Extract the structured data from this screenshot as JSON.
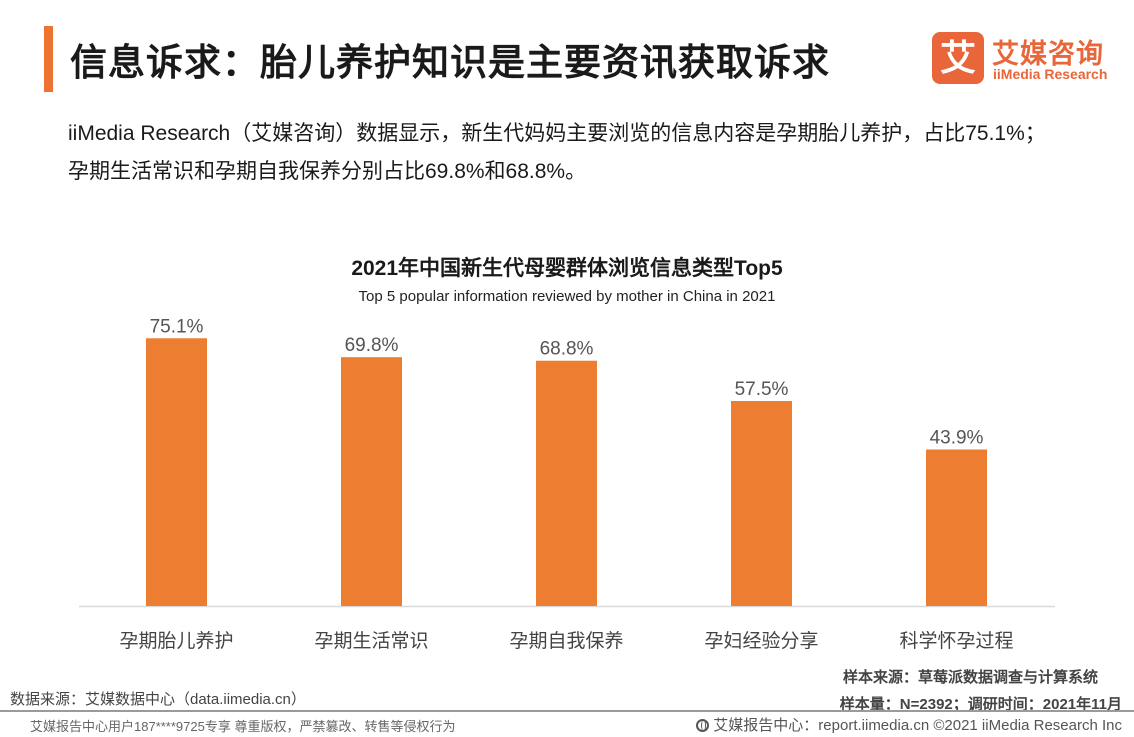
{
  "header": {
    "title": "信息诉求：胎儿养护知识是主要资讯获取诉求",
    "logo_mark": "艾",
    "logo_cn": "艾媒咨询",
    "logo_en": "iiMedia Research"
  },
  "summary": {
    "line1": "iiMedia Research（艾媒咨询）数据显示，新生代妈妈主要浏览的信息内容是孕期胎儿养护，占比75.1%；",
    "line2": "孕期生活常识和孕期自我保养分别占比69.8%和68.8%。"
  },
  "chart_data": {
    "type": "bar",
    "title": "2021年中国新生代母婴群体浏览信息类型Top5",
    "subtitle": "Top 5 popular information reviewed by mother in China in 2021",
    "categories": [
      "孕期胎儿养护",
      "孕期生活常识",
      "孕期自我保养",
      "孕妇经验分享",
      "科学怀孕过程"
    ],
    "values": [
      75.1,
      69.8,
      68.8,
      57.5,
      43.9
    ],
    "value_labels": [
      "75.1%",
      "69.8%",
      "68.8%",
      "57.5%",
      "43.9%"
    ],
    "unit": "%",
    "ylim": [
      0,
      80
    ],
    "grid": false,
    "bar_color": "#ed7d31"
  },
  "footer": {
    "data_source": "数据来源：艾媒数据中心（data.iimedia.cn）",
    "sample_source": "样本来源：草莓派数据调查与计算系统",
    "sample_info": "样本量：N=2392；调研时间：2021年11月",
    "copyright_notice": "艾媒报告中心用户187****9725专享 尊重版权，严禁篡改、转售等侵权行为",
    "report_center": "艾媒报告中心：report.iimedia.cn  ©2021  iiMedia Research  Inc"
  }
}
